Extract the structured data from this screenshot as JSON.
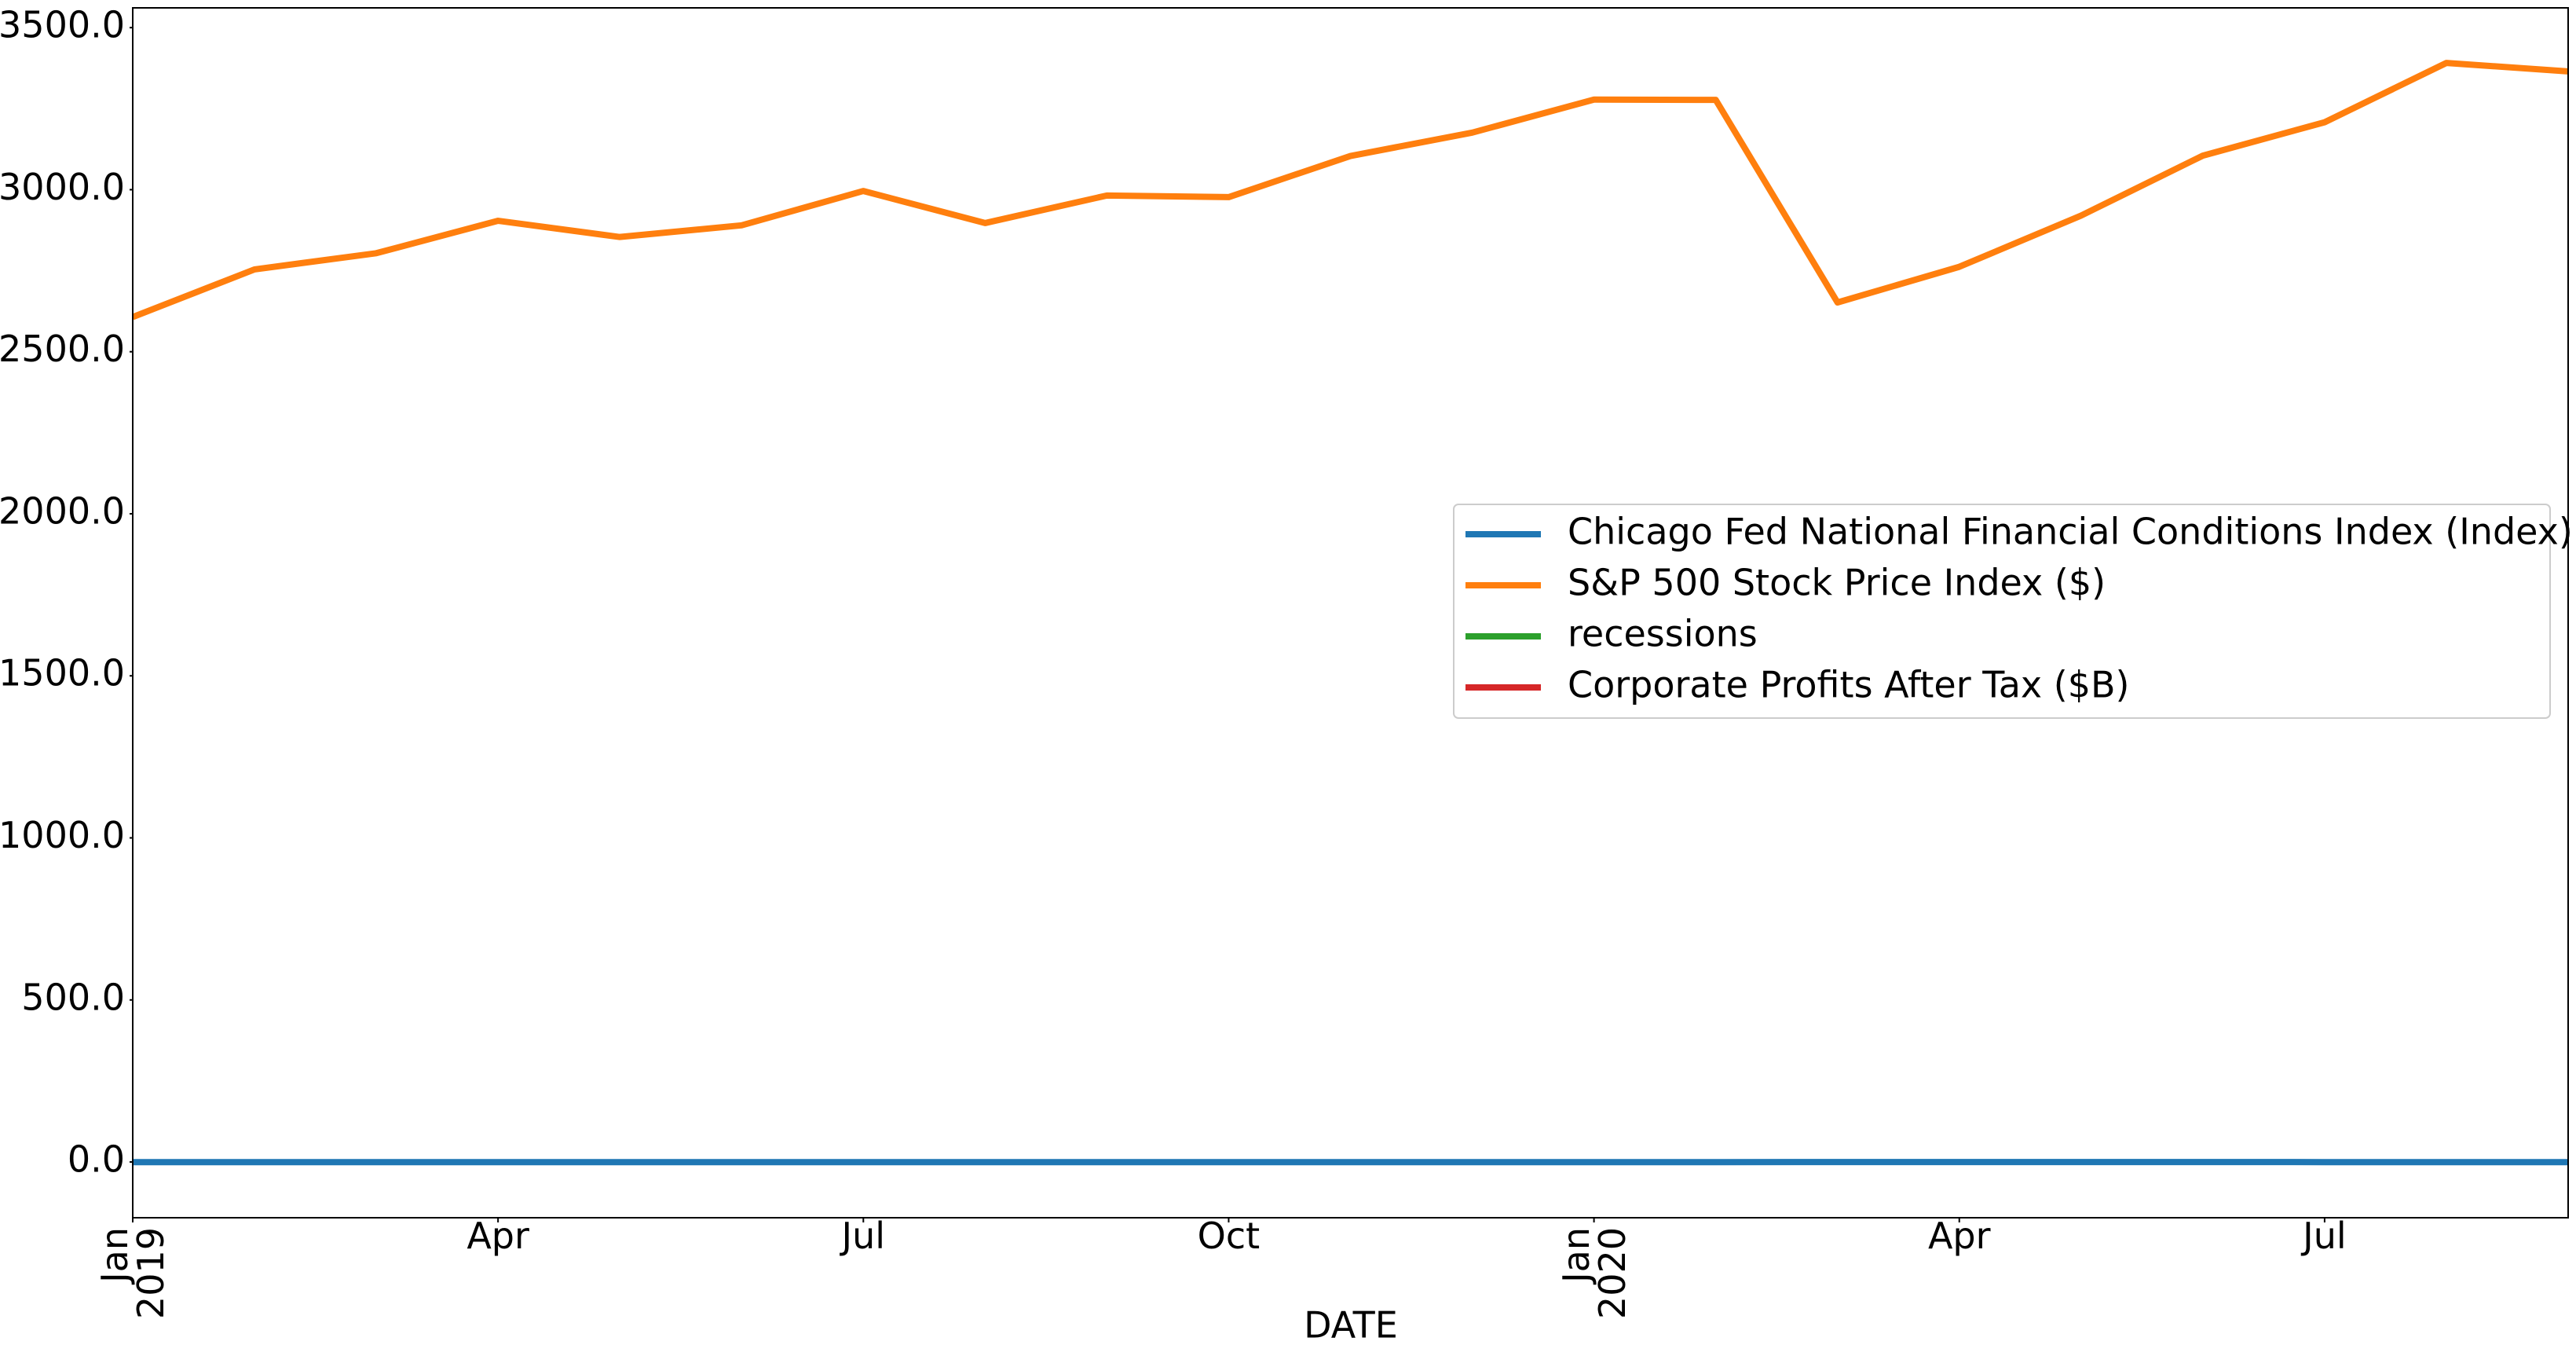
{
  "chart_data": {
    "type": "line",
    "x_label": "DATE",
    "x": [
      "2019-01",
      "2019-02",
      "2019-03",
      "2019-04",
      "2019-05",
      "2019-06",
      "2019-07",
      "2019-08",
      "2019-09",
      "2019-10",
      "2019-11",
      "2019-12",
      "2020-01",
      "2020-02",
      "2020-03",
      "2020-04",
      "2020-05",
      "2020-06",
      "2020-07",
      "2020-08",
      "2020-09"
    ],
    "xticks": [
      {
        "value": "2019-01",
        "label": "Jan\n2019"
      },
      {
        "value": "2019-04",
        "label": "Apr"
      },
      {
        "value": "2019-07",
        "label": "Jul"
      },
      {
        "value": "2019-10",
        "label": "Oct"
      },
      {
        "value": "2020-01",
        "label": "Jan\n2020"
      },
      {
        "value": "2020-04",
        "label": "Apr"
      },
      {
        "value": "2020-07",
        "label": "Jul"
      }
    ],
    "ylim": [
      -172,
      3561
    ],
    "yticks": [
      {
        "value": 0,
        "label": "0.0"
      },
      {
        "value": 500,
        "label": "500.0"
      },
      {
        "value": 1000,
        "label": "1000.0"
      },
      {
        "value": 1500,
        "label": "1500.0"
      },
      {
        "value": 2000,
        "label": "2000.0"
      },
      {
        "value": 2500,
        "label": "2500.0"
      },
      {
        "value": 3000,
        "label": "3000.0"
      },
      {
        "value": 3500,
        "label": "3500.0"
      }
    ],
    "legend": "center right",
    "series": [
      {
        "name": "Chicago Fed National Financial Conditions Index (Index)",
        "color": "#1f77b4",
        "values": [
          -0.45,
          -0.53,
          -0.55,
          -0.6,
          -0.57,
          -0.57,
          -0.6,
          -0.56,
          -0.58,
          -0.59,
          -0.61,
          -0.62,
          -0.6,
          -0.5,
          -0.1,
          -0.05,
          -0.2,
          -0.3,
          -0.35,
          -0.4,
          -0.42
        ]
      },
      {
        "name": "S&P 500 Stock Price Index ($)",
        "color": "#ff7f0e",
        "values": [
          2607,
          2754,
          2804,
          2904,
          2854,
          2890,
          2996,
          2897,
          2982,
          2977,
          3104,
          3176,
          3278,
          3277,
          2652,
          2762,
          2920,
          3105,
          3208,
          3391,
          3365
        ]
      },
      {
        "name": "recessions",
        "color": "#2ca02c",
        "values": [
          null,
          null,
          null,
          null,
          null,
          null,
          null,
          null,
          null,
          null,
          null,
          null,
          null,
          null,
          null,
          null,
          null,
          null,
          null,
          null,
          null
        ]
      },
      {
        "name": "Corporate Profits After Tax ($B)",
        "color": "#d62728",
        "values": [
          null,
          null,
          null,
          null,
          null,
          null,
          null,
          null,
          null,
          null,
          null,
          null,
          null,
          null,
          null,
          null,
          null,
          null,
          null,
          null,
          null
        ]
      }
    ]
  }
}
